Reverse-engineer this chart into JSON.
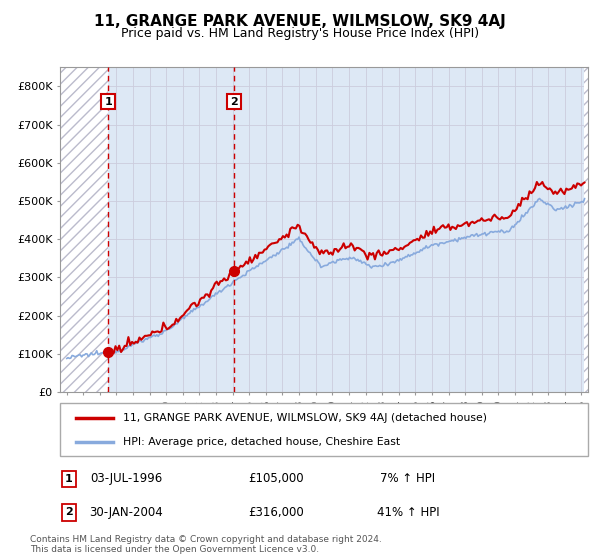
{
  "title": "11, GRANGE PARK AVENUE, WILMSLOW, SK9 4AJ",
  "subtitle": "Price paid vs. HM Land Registry's House Price Index (HPI)",
  "ylim": [
    0,
    850000
  ],
  "yticks": [
    0,
    100000,
    200000,
    300000,
    400000,
    500000,
    600000,
    700000,
    800000
  ],
  "ytick_labels": [
    "£0",
    "£100K",
    "£200K",
    "£300K",
    "£400K",
    "£500K",
    "£600K",
    "£700K",
    "£800K"
  ],
  "xlim_start": 1993.6,
  "xlim_end": 2025.4,
  "sale1_x": 1996.5,
  "sale1_y": 105000,
  "sale1_label": "1",
  "sale1_date": "03-JUL-1996",
  "sale1_price": "£105,000",
  "sale1_hpi": "7% ↑ HPI",
  "sale2_x": 2004.08,
  "sale2_y": 316000,
  "sale2_label": "2",
  "sale2_date": "30-JAN-2004",
  "sale2_price": "£316,000",
  "sale2_hpi": "41% ↑ HPI",
  "legend_line1": "11, GRANGE PARK AVENUE, WILMSLOW, SK9 4AJ (detached house)",
  "legend_line2": "HPI: Average price, detached house, Cheshire East",
  "footer": "Contains HM Land Registry data © Crown copyright and database right 2024.\nThis data is licensed under the Open Government Licence v3.0.",
  "property_color": "#cc0000",
  "hpi_color": "#88aadd",
  "grid_color": "#ccccdd",
  "bg_color": "#dde8f5",
  "hatch_bg": "#ffffff",
  "xtick_years": [
    1994,
    1995,
    1996,
    1997,
    1998,
    1999,
    2000,
    2001,
    2002,
    2003,
    2004,
    2005,
    2006,
    2007,
    2008,
    2009,
    2010,
    2011,
    2012,
    2013,
    2014,
    2015,
    2016,
    2017,
    2018,
    2019,
    2020,
    2021,
    2022,
    2023,
    2024,
    2025
  ],
  "hpi_start_year": 1994.0,
  "hpi_end_year": 2025.2,
  "prop_start_year": 1994.0,
  "prop_end_year": 2025.2
}
